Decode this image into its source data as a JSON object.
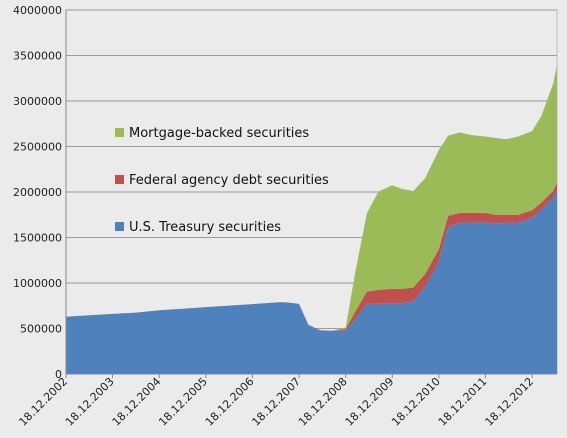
{
  "chart_data": {
    "type": "area",
    "stacked": true,
    "title": "",
    "xlabel": "",
    "ylabel": "",
    "ylim": [
      0,
      4000000
    ],
    "yticks": [
      "0",
      "500000",
      "1000000",
      "1500000",
      "2000000",
      "2500000",
      "3000000",
      "3500000",
      "4000000"
    ],
    "ytick_values": [
      0,
      500000,
      1000000,
      1500000,
      2000000,
      2500000,
      3000000,
      3500000,
      4000000
    ],
    "xlim": [
      "2002-12-18",
      "2013-07-01"
    ],
    "xticks": [
      "18.12.2002",
      "18.12.2003",
      "18.12.2004",
      "18.12.2005",
      "18.12.2006",
      "18.12.2007",
      "18.12.2008",
      "18.12.2009",
      "18.12.2010",
      "18.12.2011",
      "18.12.2012"
    ],
    "xtick_dates": [
      "2002-12-18",
      "2003-12-18",
      "2004-12-18",
      "2005-12-18",
      "2006-12-18",
      "2007-12-18",
      "2008-12-18",
      "2009-12-18",
      "2010-12-18",
      "2011-12-18",
      "2012-12-18"
    ],
    "grid": "horizontal",
    "legend_position": "inside-left",
    "x": [
      "2002-12-18",
      "2003-06-18",
      "2003-12-18",
      "2004-06-18",
      "2004-12-18",
      "2005-06-18",
      "2005-12-18",
      "2006-06-18",
      "2006-12-18",
      "2007-06-01",
      "2007-08-01",
      "2007-10-01",
      "2007-12-18",
      "2008-03-01",
      "2008-06-01",
      "2008-09-01",
      "2008-12-18",
      "2009-03-01",
      "2009-06-01",
      "2009-09-01",
      "2009-12-18",
      "2010-03-01",
      "2010-06-01",
      "2010-09-01",
      "2010-12-18",
      "2011-03-01",
      "2011-06-01",
      "2011-09-01",
      "2011-12-18",
      "2012-03-01",
      "2012-06-01",
      "2012-09-01",
      "2012-12-18",
      "2013-03-01",
      "2013-06-01",
      "2013-07-01"
    ],
    "series": [
      {
        "name": "U.S. Treasury securities",
        "color": "#4f81bd",
        "values": [
          630000,
          645000,
          660000,
          675000,
          700000,
          718000,
          735000,
          752000,
          768000,
          785000,
          790000,
          785000,
          770000,
          540000,
          480000,
          475000,
          475000,
          600000,
          770000,
          770000,
          775000,
          780000,
          800000,
          960000,
          1240000,
          1620000,
          1660000,
          1665000,
          1670000,
          1655000,
          1660000,
          1665000,
          1720000,
          1810000,
          1940000,
          2030000
        ]
      },
      {
        "name": "Federal agency debt securities",
        "color": "#c0504d",
        "values": [
          0,
          0,
          0,
          0,
          0,
          0,
          0,
          0,
          0,
          0,
          0,
          0,
          0,
          0,
          0,
          0,
          20000,
          80000,
          135000,
          155000,
          160000,
          155000,
          150000,
          140000,
          130000,
          120000,
          110000,
          105000,
          100000,
          95000,
          90000,
          85000,
          80000,
          75000,
          72000,
          70000
        ]
      },
      {
        "name": "Mortgage-backed securities",
        "color": "#9bbb59",
        "values": [
          0,
          0,
          0,
          0,
          0,
          0,
          0,
          0,
          0,
          0,
          0,
          0,
          0,
          0,
          0,
          0,
          15000,
          420000,
          860000,
          1080000,
          1140000,
          1100000,
          1060000,
          1050000,
          1090000,
          880000,
          885000,
          855000,
          840000,
          845000,
          830000,
          860000,
          870000,
          950000,
          1180000,
          1290000
        ]
      }
    ]
  }
}
